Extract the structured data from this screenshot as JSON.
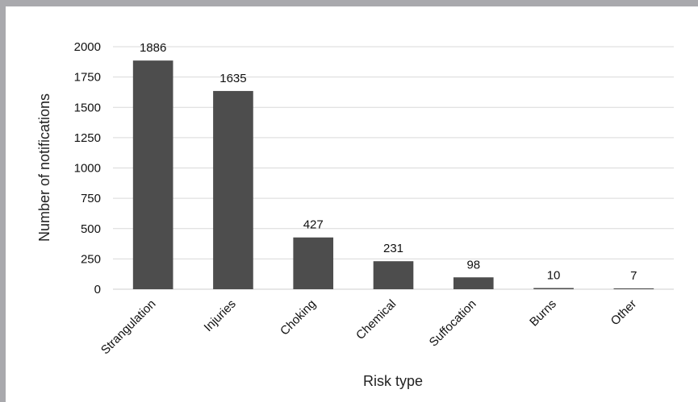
{
  "chart_data": {
    "type": "bar",
    "categories": [
      "Strangulation",
      "Injuries",
      "Choking",
      "Chemical",
      "Suffocation",
      "Burns",
      "Other"
    ],
    "values": [
      1886,
      1635,
      427,
      231,
      98,
      10,
      7
    ],
    "data_labels": [
      "1886",
      "1635",
      "427",
      "231",
      "98",
      "10",
      "7"
    ],
    "title": "",
    "xlabel": "Risk type",
    "ylabel": "Number of notifications",
    "ylim": [
      0,
      2000
    ],
    "yticks": [
      0,
      250,
      500,
      750,
      1000,
      1250,
      1500,
      1750,
      2000
    ],
    "grid": true,
    "bar_color": "#4d4d4d",
    "frame_color": "#a9a9ad"
  }
}
